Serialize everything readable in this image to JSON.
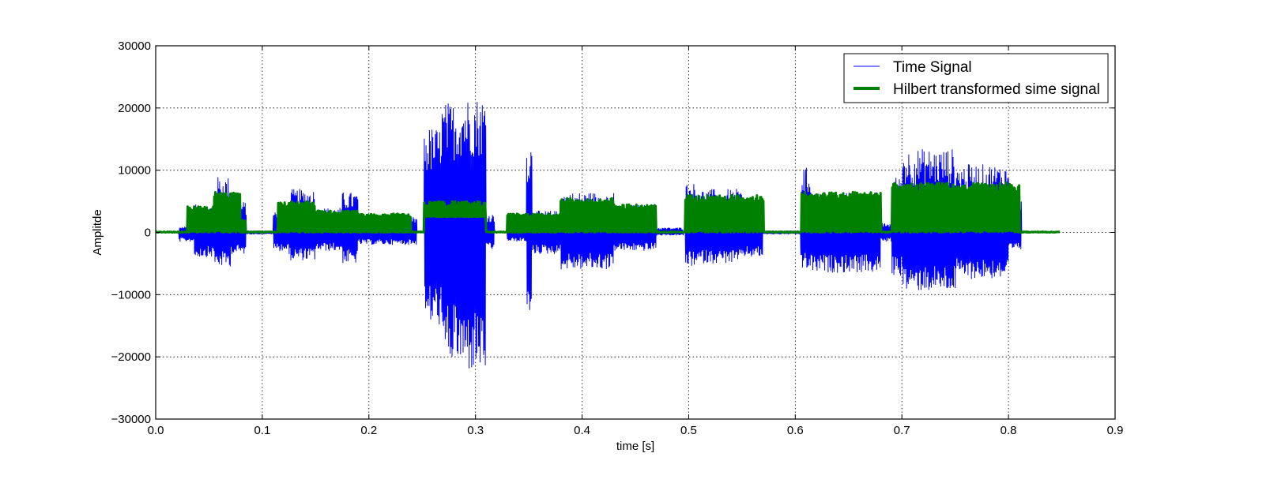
{
  "chart_data": {
    "type": "line",
    "title": "",
    "xlabel": "time [s]",
    "ylabel": "Amplitde",
    "xlim": [
      0.0,
      0.9
    ],
    "ylim": [
      -30000,
      30000
    ],
    "xticks": [
      "0.0",
      "0.1",
      "0.2",
      "0.3",
      "0.4",
      "0.5",
      "0.6",
      "0.7",
      "0.8",
      "0.9"
    ],
    "yticks": [
      "30000",
      "20000",
      "10000",
      "0",
      "−10000",
      "−20000",
      "−30000"
    ],
    "grid": true,
    "legend_position": "top-right",
    "signal_end": 0.848,
    "series": [
      {
        "name": "Time Signal",
        "color": "#0000ff",
        "style": "thin-line",
        "envelope_segments": [
          {
            "start": 0.022,
            "end": 0.036,
            "max": 1000,
            "min": -1500
          },
          {
            "start": 0.036,
            "end": 0.055,
            "max": 4500,
            "min": -4000
          },
          {
            "start": 0.055,
            "end": 0.07,
            "max": 9000,
            "min": -5500
          },
          {
            "start": 0.07,
            "end": 0.085,
            "max": 5000,
            "min": -3500
          },
          {
            "start": 0.085,
            "end": 0.11,
            "max": 300,
            "min": -300
          },
          {
            "start": 0.11,
            "end": 0.125,
            "max": 3500,
            "min": -3000
          },
          {
            "start": 0.125,
            "end": 0.15,
            "max": 7000,
            "min": -4500
          },
          {
            "start": 0.15,
            "end": 0.175,
            "max": 4000,
            "min": -3000
          },
          {
            "start": 0.175,
            "end": 0.19,
            "max": 6500,
            "min": -5000
          },
          {
            "start": 0.19,
            "end": 0.245,
            "max": 2500,
            "min": -2000
          },
          {
            "start": 0.252,
            "end": 0.268,
            "max": 17000,
            "min": -15000
          },
          {
            "start": 0.268,
            "end": 0.285,
            "max": 21000,
            "min": -21000
          },
          {
            "start": 0.285,
            "end": 0.31,
            "max": 22000,
            "min": -22500
          },
          {
            "start": 0.31,
            "end": 0.318,
            "max": 3000,
            "min": -3000
          },
          {
            "start": 0.33,
            "end": 0.348,
            "max": 2000,
            "min": -1500
          },
          {
            "start": 0.348,
            "end": 0.353,
            "max": 14500,
            "min": -15800
          },
          {
            "start": 0.353,
            "end": 0.38,
            "max": 3500,
            "min": -3500
          },
          {
            "start": 0.38,
            "end": 0.43,
            "max": 6500,
            "min": -6000
          },
          {
            "start": 0.43,
            "end": 0.47,
            "max": 4500,
            "min": -3000
          },
          {
            "start": 0.47,
            "end": 0.495,
            "max": 800,
            "min": -500
          },
          {
            "start": 0.497,
            "end": 0.51,
            "max": 8000,
            "min": -5500
          },
          {
            "start": 0.51,
            "end": 0.55,
            "max": 7000,
            "min": -5000
          },
          {
            "start": 0.55,
            "end": 0.57,
            "max": 5000,
            "min": -4000
          },
          {
            "start": 0.57,
            "end": 0.605,
            "max": 300,
            "min": -300
          },
          {
            "start": 0.605,
            "end": 0.615,
            "max": 10500,
            "min": -6000
          },
          {
            "start": 0.615,
            "end": 0.68,
            "max": 6500,
            "min": -6500
          },
          {
            "start": 0.68,
            "end": 0.69,
            "max": 1500,
            "min": -1500
          },
          {
            "start": 0.69,
            "end": 0.7,
            "max": 9000,
            "min": -7000
          },
          {
            "start": 0.7,
            "end": 0.75,
            "max": 13500,
            "min": -9500
          },
          {
            "start": 0.75,
            "end": 0.8,
            "max": 11000,
            "min": -7500
          },
          {
            "start": 0.8,
            "end": 0.812,
            "max": 5000,
            "min": -3000
          }
        ]
      },
      {
        "name": "Hilbert transformed sime signal",
        "color": "#008000",
        "style": "thick-line",
        "envelope_segments": [
          {
            "start": 0.03,
            "end": 0.055,
            "max": 4200,
            "min": 0
          },
          {
            "start": 0.055,
            "end": 0.08,
            "max": 6500,
            "min": 0
          },
          {
            "start": 0.08,
            "end": 0.085,
            "max": 2000,
            "min": 0
          },
          {
            "start": 0.115,
            "end": 0.15,
            "max": 5000,
            "min": 0
          },
          {
            "start": 0.15,
            "end": 0.19,
            "max": 3500,
            "min": 0
          },
          {
            "start": 0.19,
            "end": 0.24,
            "max": 3000,
            "min": 0
          },
          {
            "start": 0.252,
            "end": 0.31,
            "max": 5000,
            "min": 2500
          },
          {
            "start": 0.33,
            "end": 0.38,
            "max": 3000,
            "min": 0
          },
          {
            "start": 0.38,
            "end": 0.43,
            "max": 5500,
            "min": 0
          },
          {
            "start": 0.43,
            "end": 0.47,
            "max": 4500,
            "min": 0
          },
          {
            "start": 0.497,
            "end": 0.57,
            "max": 6000,
            "min": 0
          },
          {
            "start": 0.605,
            "end": 0.68,
            "max": 6500,
            "min": 0
          },
          {
            "start": 0.69,
            "end": 0.81,
            "max": 8000,
            "min": 0
          }
        ]
      }
    ]
  }
}
